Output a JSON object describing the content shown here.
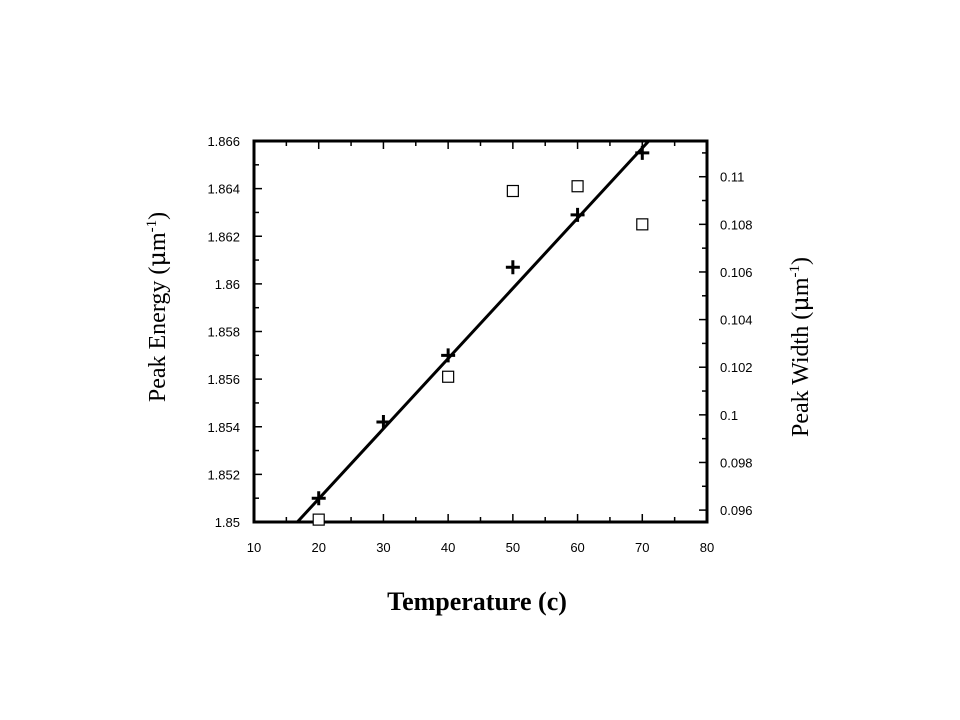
{
  "chart_data": {
    "type": "scatter",
    "xlabel": "Temperature (c)",
    "ylabel_left": {
      "pre": "Peak Energy (",
      "mu": "μ",
      "unit": "m",
      "sup": "-1",
      "post": ")"
    },
    "ylabel_right": {
      "pre": "Peak Width (",
      "mu": "μ",
      "unit": "m",
      "sup": "-1",
      "post": ")"
    },
    "xlim": [
      10,
      80
    ],
    "ylim_left": [
      1.85,
      1.866
    ],
    "ylim_right": [
      0.0955,
      0.1115
    ],
    "x_ticks": [
      "10",
      "20",
      "30",
      "40",
      "50",
      "60",
      "70",
      "80"
    ],
    "y_left_ticks": [
      "1.85",
      "1.852",
      "1.854",
      "1.856",
      "1.858",
      "1.86",
      "1.862",
      "1.864",
      "1.866"
    ],
    "y_right_ticks": [
      "0.096",
      "0.098",
      "0.1",
      "0.102",
      "0.104",
      "0.106",
      "0.108",
      "0.11"
    ],
    "series": [
      {
        "axis": "left",
        "marker": "plus",
        "points": [
          {
            "x": 20,
            "y": 1.851
          },
          {
            "x": 30,
            "y": 1.8542
          },
          {
            "x": 40,
            "y": 1.857
          },
          {
            "x": 50,
            "y": 1.8607
          },
          {
            "x": 60,
            "y": 1.8629
          },
          {
            "x": 70,
            "y": 1.8655
          }
        ]
      },
      {
        "axis": "right",
        "marker": "square",
        "points": [
          {
            "x": 20,
            "y": 0.0956
          },
          {
            "x": 40,
            "y": 0.1016
          },
          {
            "x": 50,
            "y": 0.1094
          },
          {
            "x": 60,
            "y": 0.1096
          },
          {
            "x": 70,
            "y": 0.108
          }
        ]
      }
    ],
    "fit_line": {
      "axis": "left",
      "x": [
        16.7,
        71
      ],
      "y": [
        1.85,
        1.866
      ]
    },
    "grid": false,
    "legend": "none"
  }
}
